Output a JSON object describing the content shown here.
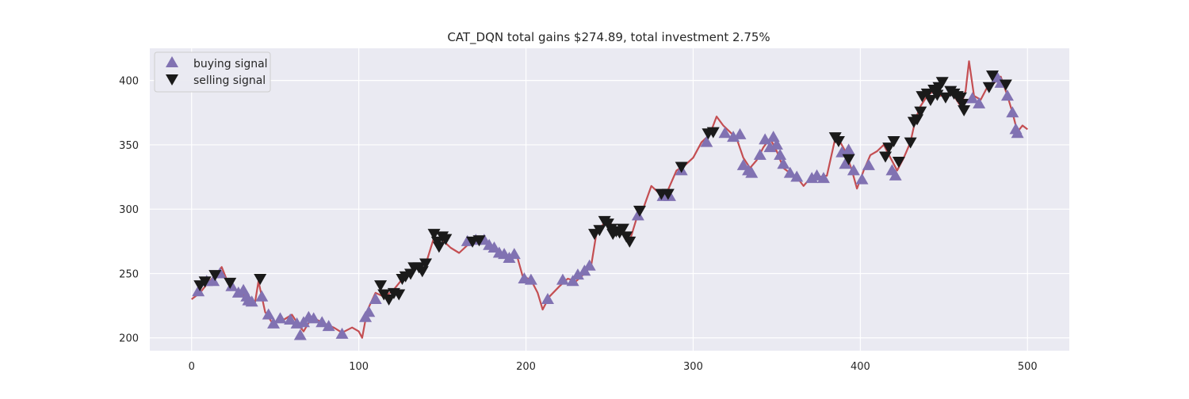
{
  "chart_data": {
    "type": "line",
    "title": "CAT_DQN total gains $274.89, total investment 2.75%",
    "xlabel": "",
    "ylabel": "",
    "xlim": [
      -25,
      525
    ],
    "ylim": [
      190,
      425
    ],
    "x_ticks": [
      0,
      100,
      200,
      300,
      400,
      500
    ],
    "x_tick_labels": [
      "0",
      "100",
      "200",
      "300",
      "400",
      "500"
    ],
    "y_ticks": [
      200,
      250,
      300,
      350,
      400
    ],
    "y_tick_labels": [
      "200",
      "250",
      "300",
      "350",
      "400"
    ],
    "grid": true,
    "legend_placement": "upper-left",
    "colors": {
      "background": "#eaeaf2",
      "grid": "#ffffff",
      "line": "#c44e52",
      "buy": "#8172b2",
      "sell": "#1a1a1a"
    },
    "price_anchors": [
      [
        0,
        230
      ],
      [
        5,
        235
      ],
      [
        10,
        243
      ],
      [
        15,
        250
      ],
      [
        18,
        255
      ],
      [
        22,
        242
      ],
      [
        28,
        236
      ],
      [
        33,
        232
      ],
      [
        38,
        228
      ],
      [
        40,
        244
      ],
      [
        44,
        220
      ],
      [
        48,
        212
      ],
      [
        55,
        214
      ],
      [
        60,
        218
      ],
      [
        64,
        210
      ],
      [
        67,
        205
      ],
      [
        72,
        216
      ],
      [
        78,
        212
      ],
      [
        85,
        208
      ],
      [
        90,
        204
      ],
      [
        96,
        208
      ],
      [
        100,
        205
      ],
      [
        102,
        200
      ],
      [
        105,
        221
      ],
      [
        110,
        235
      ],
      [
        115,
        232
      ],
      [
        120,
        236
      ],
      [
        125,
        244
      ],
      [
        130,
        250
      ],
      [
        135,
        256
      ],
      [
        140,
        257
      ],
      [
        145,
        278
      ],
      [
        150,
        276
      ],
      [
        155,
        270
      ],
      [
        160,
        266
      ],
      [
        165,
        272
      ],
      [
        170,
        275
      ],
      [
        175,
        276
      ],
      [
        180,
        270
      ],
      [
        185,
        265
      ],
      [
        190,
        264
      ],
      [
        195,
        262
      ],
      [
        198,
        248
      ],
      [
        203,
        245
      ],
      [
        207,
        235
      ],
      [
        210,
        222
      ],
      [
        214,
        232
      ],
      [
        220,
        240
      ],
      [
        225,
        246
      ],
      [
        230,
        244
      ],
      [
        235,
        250
      ],
      [
        239,
        256
      ],
      [
        242,
        280
      ],
      [
        246,
        288
      ],
      [
        250,
        290
      ],
      [
        254,
        283
      ],
      [
        258,
        284
      ],
      [
        262,
        275
      ],
      [
        266,
        292
      ],
      [
        270,
        300
      ],
      [
        275,
        318
      ],
      [
        280,
        312
      ],
      [
        285,
        315
      ],
      [
        290,
        330
      ],
      [
        295,
        334
      ],
      [
        300,
        340
      ],
      [
        305,
        352
      ],
      [
        310,
        358
      ],
      [
        314,
        372
      ],
      [
        318,
        365
      ],
      [
        322,
        360
      ],
      [
        326,
        355
      ],
      [
        330,
        340
      ],
      [
        334,
        332
      ],
      [
        338,
        338
      ],
      [
        342,
        348
      ],
      [
        346,
        355
      ],
      [
        350,
        345
      ],
      [
        354,
        332
      ],
      [
        358,
        328
      ],
      [
        362,
        325
      ],
      [
        366,
        318
      ],
      [
        370,
        324
      ],
      [
        375,
        325
      ],
      [
        380,
        326
      ],
      [
        385,
        355
      ],
      [
        388,
        352
      ],
      [
        391,
        345
      ],
      [
        395,
        330
      ],
      [
        398,
        316
      ],
      [
        402,
        330
      ],
      [
        406,
        342
      ],
      [
        410,
        345
      ],
      [
        414,
        350
      ],
      [
        418,
        340
      ],
      [
        422,
        330
      ],
      [
        426,
        340
      ],
      [
        430,
        352
      ],
      [
        433,
        370
      ],
      [
        436,
        380
      ],
      [
        440,
        388
      ],
      [
        444,
        392
      ],
      [
        448,
        388
      ],
      [
        452,
        390
      ],
      [
        456,
        388
      ],
      [
        460,
        380
      ],
      [
        463,
        392
      ],
      [
        465,
        415
      ],
      [
        468,
        388
      ],
      [
        472,
        385
      ],
      [
        476,
        395
      ],
      [
        480,
        398
      ],
      [
        484,
        403
      ],
      [
        488,
        388
      ],
      [
        491,
        375
      ],
      [
        494,
        360
      ],
      [
        497,
        365
      ],
      [
        500,
        362
      ]
    ],
    "buy_signals": [
      [
        4,
        236
      ],
      [
        9,
        244
      ],
      [
        13,
        244
      ],
      [
        17,
        250
      ],
      [
        24,
        240
      ],
      [
        28,
        235
      ],
      [
        31,
        237
      ],
      [
        33,
        232
      ],
      [
        34,
        229
      ],
      [
        36,
        228
      ],
      [
        42,
        232
      ],
      [
        46,
        218
      ],
      [
        49,
        211
      ],
      [
        53,
        215
      ],
      [
        59,
        214
      ],
      [
        63,
        211
      ],
      [
        65,
        202
      ],
      [
        67,
        212
      ],
      [
        70,
        216
      ],
      [
        73,
        215
      ],
      [
        78,
        212
      ],
      [
        82,
        209
      ],
      [
        90,
        203
      ],
      [
        104,
        216
      ],
      [
        106,
        220
      ],
      [
        110,
        230
      ],
      [
        165,
        275
      ],
      [
        170,
        276
      ],
      [
        175,
        276
      ],
      [
        178,
        272
      ],
      [
        181,
        270
      ],
      [
        184,
        266
      ],
      [
        187,
        265
      ],
      [
        190,
        262
      ],
      [
        193,
        265
      ],
      [
        199,
        246
      ],
      [
        203,
        245
      ],
      [
        213,
        230
      ],
      [
        222,
        245
      ],
      [
        228,
        244
      ],
      [
        231,
        249
      ],
      [
        235,
        252
      ],
      [
        238,
        256
      ],
      [
        267,
        295
      ],
      [
        282,
        310
      ],
      [
        286,
        310
      ],
      [
        293,
        330
      ],
      [
        308,
        352
      ],
      [
        319,
        359
      ],
      [
        324,
        356
      ],
      [
        328,
        358
      ],
      [
        330,
        334
      ],
      [
        333,
        330
      ],
      [
        335,
        328
      ],
      [
        340,
        342
      ],
      [
        343,
        354
      ],
      [
        346,
        348
      ],
      [
        348,
        356
      ],
      [
        350,
        350
      ],
      [
        352,
        342
      ],
      [
        354,
        335
      ],
      [
        358,
        328
      ],
      [
        362,
        325
      ],
      [
        371,
        324
      ],
      [
        374,
        326
      ],
      [
        378,
        324
      ],
      [
        389,
        344
      ],
      [
        391,
        335
      ],
      [
        393,
        346
      ],
      [
        396,
        330
      ],
      [
        401,
        323
      ],
      [
        405,
        334
      ],
      [
        419,
        330
      ],
      [
        421,
        326
      ],
      [
        467,
        386
      ],
      [
        471,
        382
      ],
      [
        482,
        402
      ],
      [
        484,
        398
      ],
      [
        488,
        388
      ],
      [
        491,
        375
      ],
      [
        493,
        362
      ],
      [
        494,
        359
      ]
    ],
    "sell_signals": [
      [
        5,
        241
      ],
      [
        8,
        244
      ],
      [
        14,
        249
      ],
      [
        23,
        243
      ],
      [
        41,
        246
      ],
      [
        113,
        241
      ],
      [
        115,
        234
      ],
      [
        118,
        230
      ],
      [
        121,
        235
      ],
      [
        124,
        234
      ],
      [
        126,
        246
      ],
      [
        128,
        248
      ],
      [
        131,
        250
      ],
      [
        133,
        255
      ],
      [
        136,
        255
      ],
      [
        138,
        252
      ],
      [
        140,
        258
      ],
      [
        145,
        281
      ],
      [
        147,
        275
      ],
      [
        148,
        271
      ],
      [
        150,
        279
      ],
      [
        152,
        277
      ],
      [
        168,
        275
      ],
      [
        172,
        276
      ],
      [
        241,
        281
      ],
      [
        244,
        284
      ],
      [
        247,
        291
      ],
      [
        249,
        289
      ],
      [
        251,
        285
      ],
      [
        252,
        281
      ],
      [
        254,
        283
      ],
      [
        256,
        282
      ],
      [
        258,
        285
      ],
      [
        260,
        279
      ],
      [
        262,
        275
      ],
      [
        268,
        299
      ],
      [
        281,
        312
      ],
      [
        285,
        312
      ],
      [
        293,
        333
      ],
      [
        309,
        359
      ],
      [
        312,
        360
      ],
      [
        385,
        356
      ],
      [
        387,
        353
      ],
      [
        393,
        339
      ],
      [
        415,
        341
      ],
      [
        417,
        348
      ],
      [
        420,
        353
      ],
      [
        423,
        337
      ],
      [
        430,
        352
      ],
      [
        432,
        368
      ],
      [
        434,
        370
      ],
      [
        436,
        376
      ],
      [
        437,
        388
      ],
      [
        440,
        390
      ],
      [
        442,
        385
      ],
      [
        444,
        393
      ],
      [
        446,
        389
      ],
      [
        447,
        395
      ],
      [
        449,
        399
      ],
      [
        451,
        387
      ],
      [
        454,
        392
      ],
      [
        456,
        390
      ],
      [
        458,
        388
      ],
      [
        460,
        387
      ],
      [
        461,
        382
      ],
      [
        462,
        377
      ],
      [
        477,
        395
      ],
      [
        479,
        404
      ],
      [
        487,
        397
      ]
    ],
    "legend": [
      {
        "label": "buying signal",
        "marker": "triangle-up",
        "color": "#8172b2"
      },
      {
        "label": "selling signal",
        "marker": "triangle-down",
        "color": "#1a1a1a"
      }
    ]
  }
}
